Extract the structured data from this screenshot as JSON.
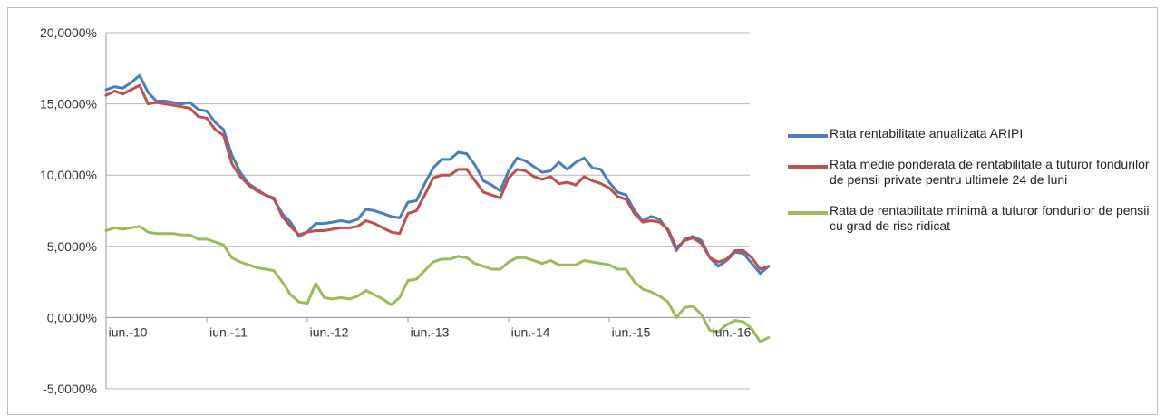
{
  "chart_data": {
    "type": "line",
    "title": "",
    "xlabel": "",
    "ylabel": "",
    "ylim": [
      -5,
      20
    ],
    "x_start": "iun.-10",
    "x_end": "nov.-16",
    "y_ticks": [
      "20,0000%",
      "15,0000%",
      "10,0000%",
      "5,0000%",
      "0,0000%",
      "-5,0000%"
    ],
    "y_tick_values": [
      20,
      15,
      10,
      5,
      0,
      -5
    ],
    "x_tick_labels": [
      "iun.-10",
      "iun.-11",
      "iun.-12",
      "iun.-13",
      "iun.-14",
      "iun.-15",
      "iun.-16"
    ],
    "x_tick_index": [
      0,
      12,
      24,
      36,
      48,
      60,
      72
    ],
    "grid": true,
    "legend_position": "right",
    "series": [
      {
        "name": "Rata rentabilitate anualizata ARIPI",
        "color": "#4a7ebb",
        "values": [
          16.0,
          16.2,
          16.1,
          16.5,
          17.0,
          15.8,
          15.2,
          15.2,
          15.1,
          15.0,
          15.1,
          14.6,
          14.5,
          13.7,
          13.2,
          11.4,
          10.2,
          9.4,
          9.0,
          8.6,
          8.3,
          7.3,
          6.7,
          5.7,
          6.0,
          6.6,
          6.6,
          6.7,
          6.8,
          6.7,
          6.9,
          7.6,
          7.5,
          7.3,
          7.1,
          7.0,
          8.1,
          8.2,
          9.4,
          10.5,
          11.1,
          11.1,
          11.6,
          11.5,
          10.7,
          9.6,
          9.3,
          8.9,
          10.3,
          11.2,
          11.0,
          10.6,
          10.2,
          10.3,
          10.9,
          10.4,
          10.9,
          11.2,
          10.5,
          10.4,
          9.5,
          8.8,
          8.6,
          7.5,
          6.8,
          7.1,
          6.9,
          6.1,
          4.7,
          5.5,
          5.7,
          5.4,
          4.2,
          3.6,
          4.0,
          4.6,
          4.5,
          3.8,
          3.1,
          3.6
        ]
      },
      {
        "name": "Rata medie ponderata de rentabilitate a tuturor fondurilor de pensii private pentru ultimele 24 de luni",
        "color": "#c0504d",
        "values": [
          15.6,
          15.9,
          15.7,
          16.0,
          16.3,
          15.0,
          15.1,
          15.0,
          14.9,
          14.8,
          14.7,
          14.1,
          14.0,
          13.2,
          12.8,
          10.8,
          9.9,
          9.3,
          8.9,
          8.6,
          8.4,
          7.1,
          6.4,
          5.8,
          6.0,
          6.1,
          6.1,
          6.2,
          6.3,
          6.3,
          6.4,
          6.8,
          6.6,
          6.3,
          6.0,
          5.9,
          7.3,
          7.5,
          8.6,
          9.8,
          10.0,
          10.0,
          10.4,
          10.4,
          9.6,
          8.8,
          8.6,
          8.4,
          9.8,
          10.4,
          10.3,
          9.9,
          9.7,
          9.9,
          9.4,
          9.5,
          9.3,
          9.9,
          9.6,
          9.4,
          9.1,
          8.5,
          8.3,
          7.3,
          6.7,
          6.8,
          6.7,
          6.2,
          4.9,
          5.4,
          5.6,
          5.2,
          4.2,
          3.9,
          4.1,
          4.7,
          4.7,
          4.2,
          3.4,
          3.6
        ]
      },
      {
        "name": "Rata de rentabilitate minimă a tuturor fondurilor de pensii cu grad de risc ridicat",
        "color": "#9bbb59",
        "values": [
          6.1,
          6.3,
          6.2,
          6.3,
          6.4,
          6.0,
          5.9,
          5.9,
          5.9,
          5.8,
          5.8,
          5.5,
          5.5,
          5.3,
          5.1,
          4.2,
          3.9,
          3.7,
          3.5,
          3.4,
          3.3,
          2.5,
          1.6,
          1.1,
          1.0,
          2.4,
          1.4,
          1.3,
          1.4,
          1.3,
          1.5,
          1.9,
          1.6,
          1.3,
          0.9,
          1.4,
          2.6,
          2.7,
          3.3,
          3.9,
          4.1,
          4.1,
          4.3,
          4.2,
          3.8,
          3.6,
          3.4,
          3.4,
          3.9,
          4.2,
          4.2,
          4.0,
          3.8,
          4.0,
          3.7,
          3.7,
          3.7,
          4.0,
          3.9,
          3.8,
          3.7,
          3.4,
          3.4,
          2.5,
          2.0,
          1.8,
          1.5,
          1.1,
          0.0,
          0.7,
          0.8,
          0.2,
          -0.9,
          -1.0,
          -0.5,
          -0.2,
          -0.3,
          -0.8,
          -1.7,
          -1.4
        ]
      }
    ]
  }
}
